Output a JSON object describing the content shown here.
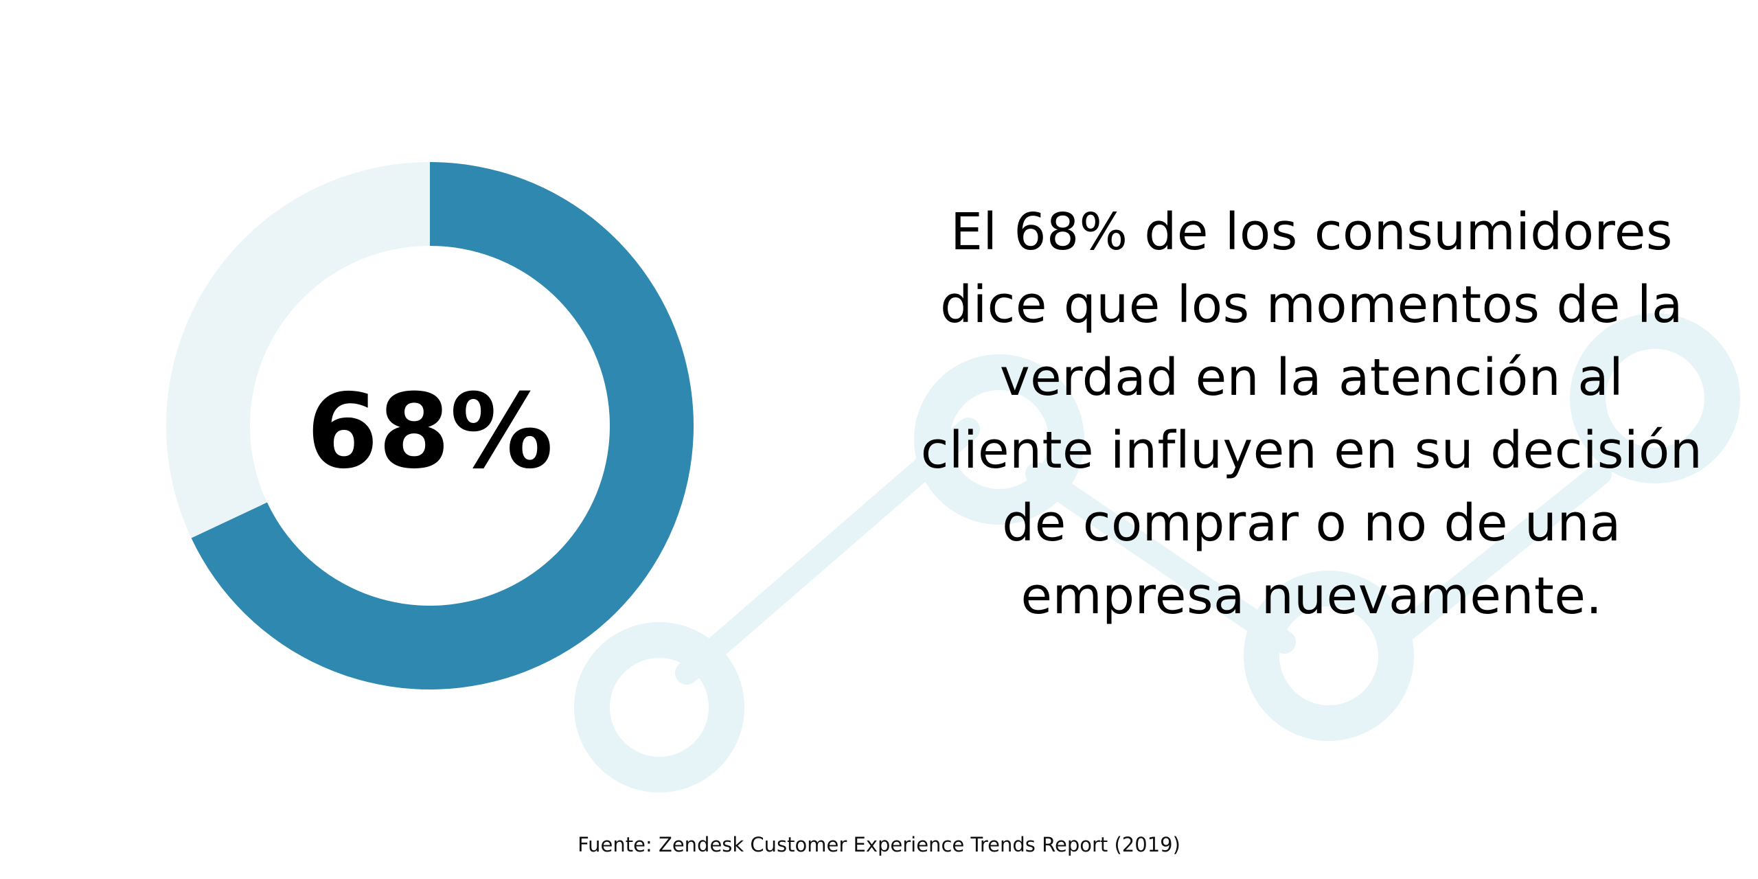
{
  "chart_data": {
    "type": "pie",
    "style": "donut",
    "slices": [
      {
        "label": "68%",
        "value": 68,
        "color": "#2E88B0"
      },
      {
        "label": "",
        "value": 32,
        "color": "#EBF5F7"
      }
    ],
    "center_label": "68%"
  },
  "statement": "El 68% de los consumidores dice que los momentos de la verdad en la atención al cliente influyen en su decisión de comprar o no de una empresa nuevamente.",
  "source": "Fuente:  Zendesk Customer Experience Trends Report (2019)",
  "colors": {
    "accent": "#2E88B0",
    "track": "#EBF5F7",
    "decoration": "#E6F4F8"
  }
}
